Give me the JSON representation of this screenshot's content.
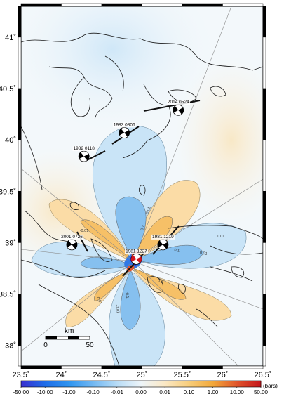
{
  "map": {
    "lon_ticks": [
      "23.5˚",
      "24˚",
      "24.5˚",
      "25˚",
      "25.5˚",
      "26˚",
      "26.5˚"
    ],
    "lat_ticks": [
      "41˚",
      "40.5˚",
      "40˚",
      "39.5˚",
      "39˚",
      "38.5˚",
      "38˚"
    ],
    "lon_range": [
      23.5,
      26.5
    ],
    "lat_range": [
      37.8,
      41.3
    ]
  },
  "events": [
    {
      "label": "2014 0524",
      "lon": 25.45,
      "lat": 40.29
    },
    {
      "label": "1983 0806",
      "lon": 24.78,
      "lat": 40.07
    },
    {
      "label": "1982 0118",
      "lon": 24.28,
      "lat": 39.84
    },
    {
      "label": "2001 0726",
      "lon": 24.13,
      "lat": 38.98
    },
    {
      "label": "1981 1219",
      "lon": 25.26,
      "lat": 38.98
    },
    {
      "label": "1981 1227",
      "lon": 24.93,
      "lat": 38.84
    }
  ],
  "contour_labels": [
    "0.01",
    "0.1",
    "-0.01",
    "-0.1",
    "0.01",
    "0.1",
    "-0.01",
    "0.01",
    "0.1",
    "-0.01"
  ],
  "scale_bar": {
    "unit": "km",
    "start": "0",
    "end": "50"
  },
  "colorbar": {
    "ticks": [
      "-50.00",
      "-10.00",
      "-1.00",
      "-0.10",
      "-0.01",
      "0.00",
      "0.01",
      "0.10",
      "1.00",
      "10.00",
      "50.00"
    ],
    "unit": "(bars)",
    "colors": [
      "#3a2fd0",
      "#1f6de8",
      "#2f95f0",
      "#72b8f2",
      "#b8dcf6",
      "#eef5f9",
      "#fbe8c4",
      "#f7cd7a",
      "#f2a83a",
      "#e0542b",
      "#c4161c"
    ]
  }
}
